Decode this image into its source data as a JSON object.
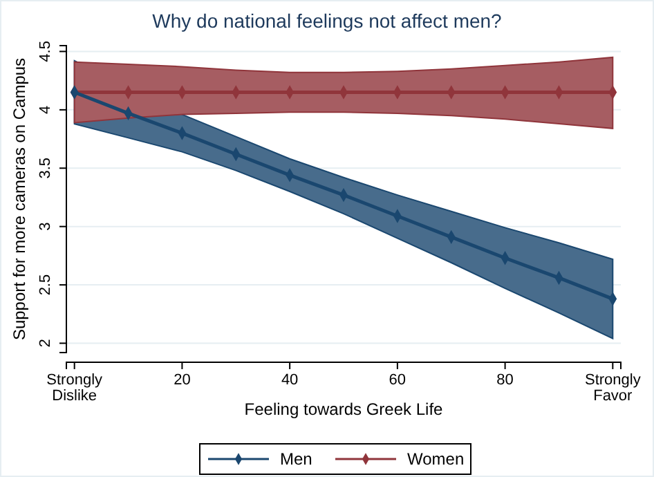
{
  "chart_data": {
    "type": "line",
    "title": "Why do national feelings not affect men?",
    "xlabel": "Feeling towards Greek Life",
    "ylabel": "Support for more cameras on Campus",
    "x": [
      0,
      10,
      20,
      30,
      40,
      50,
      60,
      70,
      80,
      90,
      100
    ],
    "series": [
      {
        "name": "Men",
        "color": "#1a476f",
        "values": [
          4.15,
          3.97,
          3.8,
          3.62,
          3.44,
          3.27,
          3.09,
          2.91,
          2.73,
          2.56,
          2.38
        ],
        "lower": [
          3.88,
          3.76,
          3.64,
          3.48,
          3.3,
          3.11,
          2.9,
          2.69,
          2.47,
          2.26,
          2.04
        ],
        "upper": [
          4.42,
          4.19,
          3.96,
          3.77,
          3.58,
          3.42,
          3.27,
          3.13,
          2.99,
          2.86,
          2.72
        ]
      },
      {
        "name": "Women",
        "color": "#90353b",
        "values": [
          4.15,
          4.15,
          4.15,
          4.15,
          4.15,
          4.15,
          4.15,
          4.15,
          4.15,
          4.15,
          4.15
        ],
        "lower": [
          3.89,
          3.93,
          3.96,
          3.97,
          3.98,
          3.98,
          3.97,
          3.95,
          3.92,
          3.88,
          3.84
        ],
        "upper": [
          4.41,
          4.39,
          4.37,
          4.34,
          4.32,
          4.32,
          4.33,
          4.35,
          4.38,
          4.41,
          4.45
        ]
      }
    ],
    "xlim": [
      -1.5,
      101.5
    ],
    "ylim": [
      1.92,
      4.55
    ],
    "xticks": [
      {
        "value": 0,
        "label": "Strongly Dislike"
      },
      20,
      40,
      60,
      80,
      {
        "value": 100,
        "label": "Strongly Favor"
      }
    ],
    "yticks": [
      2,
      2.5,
      3,
      3.5,
      4,
      4.5
    ],
    "grid": "y",
    "legend": "bottom",
    "marker": "diamond",
    "line_style": "solid"
  }
}
